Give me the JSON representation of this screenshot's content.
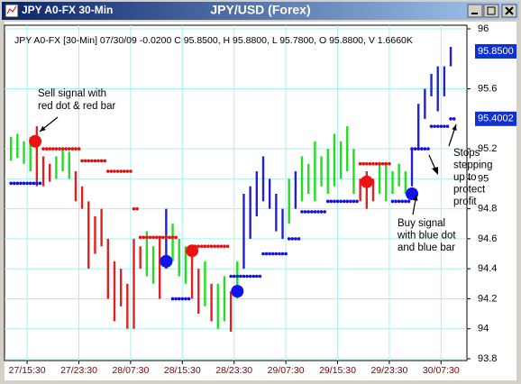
{
  "window": {
    "title": "JPY A0-FX 30-Min"
  },
  "chart_data": {
    "type": "ohlc",
    "title": "JPY/USD (Forex)",
    "info": "JPY A0-FX [30-Min] 07/30/09 -0.0200 C 95.8500, H 95.8800, L 95.7800, O 95.8800, V 1.6660K",
    "xlim": [
      -7,
      136
    ],
    "ylim": [
      93.8,
      96
    ],
    "xticks": [
      {
        "value": 0,
        "label": "27/15:30"
      },
      {
        "value": 16,
        "label": "27/23:30"
      },
      {
        "value": 32,
        "label": "28/07:30"
      },
      {
        "value": 48,
        "label": "28/15:30"
      },
      {
        "value": 64,
        "label": "28/23:30"
      },
      {
        "value": 80,
        "label": "29/07:30"
      },
      {
        "value": 96,
        "label": "29/15:30"
      },
      {
        "value": 112,
        "label": "29/23:30"
      },
      {
        "value": 128,
        "label": "30/07:30"
      }
    ],
    "yticks": [
      93.8,
      94,
      94.2,
      94.4,
      94.6,
      94.8,
      95,
      95.2,
      95.6,
      96
    ],
    "grid": true,
    "price_markers": [
      {
        "value": 95.85,
        "label": "95.8500"
      },
      {
        "value": 95.4002,
        "label": "95.4002"
      }
    ],
    "bars": {
      "x": [
        -5,
        -3,
        -1,
        1,
        3,
        5,
        7,
        9,
        11,
        13,
        15,
        17,
        19,
        21,
        23,
        25,
        27,
        29,
        31,
        33,
        35,
        37,
        39,
        41,
        43,
        45,
        47,
        49,
        51,
        53,
        55,
        57,
        59,
        61,
        63,
        65,
        67,
        69,
        71,
        73,
        75,
        77,
        79,
        81,
        83,
        85,
        87,
        89,
        91,
        93,
        95,
        97,
        99,
        101,
        103,
        105,
        107,
        109,
        111,
        113,
        115,
        117,
        119,
        121,
        123,
        125,
        127,
        129,
        131
      ],
      "high": [
        95.28,
        95.3,
        95.25,
        95.28,
        95.35,
        95.15,
        95.1,
        95.15,
        95.2,
        95.18,
        95.05,
        94.95,
        94.85,
        94.75,
        94.8,
        94.6,
        94.45,
        94.4,
        94.3,
        94.6,
        94.55,
        94.65,
        94.55,
        94.6,
        94.8,
        94.7,
        94.6,
        94.55,
        94.55,
        94.4,
        94.45,
        94.3,
        94.3,
        94.35,
        94.25,
        94.45,
        94.9,
        94.95,
        95.05,
        95.15,
        95,
        94.9,
        94.8,
        95,
        95.05,
        95.15,
        95.1,
        95.25,
        95.15,
        95.2,
        95.3,
        95.25,
        95.35,
        95.2,
        95,
        95.05,
        95,
        95.1,
        95.1,
        95.05,
        95.1,
        95.05,
        95.2,
        95.5,
        95.6,
        95.7,
        95.75,
        95.75,
        95.88
      ],
      "low": [
        95.12,
        95.14,
        95.1,
        95.05,
        94.95,
        94.95,
        94.98,
        95,
        95.05,
        95,
        94.85,
        94.8,
        94.4,
        94.5,
        94.55,
        94.2,
        94.05,
        94.15,
        94,
        94,
        94.4,
        94.35,
        94.3,
        94.2,
        94.4,
        94.45,
        94.35,
        94.3,
        94.2,
        94.1,
        94.15,
        94.05,
        94,
        94.05,
        93.98,
        94.2,
        94.4,
        94.6,
        94.75,
        94.85,
        94.8,
        94.65,
        94.6,
        94.7,
        94.8,
        94.85,
        94.9,
        94.85,
        94.95,
        94.9,
        94.95,
        95,
        95.05,
        94.9,
        94.85,
        94.8,
        94.85,
        94.9,
        94.85,
        94.9,
        94.95,
        94.9,
        94.95,
        95.2,
        95.4,
        95.55,
        95.45,
        95.55,
        95.75
      ],
      "colors": [
        "#22dd22",
        "#22dd22",
        "#22dd22",
        "#22dd22",
        "#dd2222",
        "#dd2222",
        "#dd2222",
        "#22dd22",
        "#22dd22",
        "#22dd22",
        "#dd2222",
        "#dd2222",
        "#dd2222",
        "#dd2222",
        "#dd2222",
        "#dd2222",
        "#dd2222",
        "#dd2222",
        "#dd2222",
        "#dd2222",
        "#dd2222",
        "#22dd22",
        "#22dd22",
        "#dd2222",
        "#2222cc",
        "#22dd22",
        "#22dd22",
        "#22dd22",
        "#dd2222",
        "#dd2222",
        "#22dd22",
        "#dd2222",
        "#22dd22",
        "#22dd22",
        "#dd2222",
        "#22dd22",
        "#2222cc",
        "#2222cc",
        "#2222cc",
        "#2222cc",
        "#2222cc",
        "#2222cc",
        "#2222cc",
        "#22dd22",
        "#2222cc",
        "#22dd22",
        "#22dd22",
        "#22dd22",
        "#22dd22",
        "#22dd22",
        "#22dd22",
        "#22dd22",
        "#22dd22",
        "#22dd22",
        "#dd2222",
        "#dd2222",
        "#dd2222",
        "#22dd22",
        "#22dd22",
        "#22dd22",
        "#22dd22",
        "#22dd22",
        "#2222cc",
        "#2222cc",
        "#2222cc",
        "#2222cc",
        "#2222cc",
        "#2222cc",
        "#2222cc"
      ]
    },
    "stops": [
      {
        "color": "#dd1111",
        "x": [
          5,
          7,
          9,
          11,
          13,
          15,
          17,
          19,
          21,
          23,
          25,
          27,
          29,
          31,
          33,
          35,
          37,
          39,
          41,
          43,
          45,
          51,
          53,
          55,
          57,
          59,
          61,
          103,
          105,
          107,
          109,
          111
        ],
        "values": [
          95.2,
          95.2,
          95.2,
          95.2,
          95.2,
          95.2,
          95.12,
          95.12,
          95.12,
          95.12,
          95.05,
          95.05,
          95.05,
          95.05,
          94.8,
          94.61,
          94.61,
          94.61,
          94.61,
          94.61,
          94.61,
          94.55,
          94.55,
          94.55,
          94.55,
          94.55,
          94.55,
          95.1,
          95.1,
          95.1,
          95.1,
          95.1
        ]
      },
      {
        "color": "#1111dd",
        "x": [
          -5,
          -3,
          -1,
          1,
          3,
          45,
          47,
          49,
          63,
          65,
          67,
          69,
          71,
          73,
          75,
          77,
          79,
          81,
          83,
          85,
          87,
          89,
          91,
          93,
          95,
          97,
          99,
          101,
          113,
          115,
          117,
          119,
          121,
          123,
          125,
          127,
          129,
          131
        ],
        "values": [
          94.97,
          94.97,
          94.97,
          94.97,
          94.97,
          94.2,
          94.2,
          94.2,
          94.35,
          94.35,
          94.35,
          94.35,
          94.35,
          94.5,
          94.5,
          94.5,
          94.5,
          94.6,
          94.6,
          94.78,
          94.78,
          94.78,
          94.78,
          94.85,
          94.85,
          94.85,
          94.85,
          94.85,
          94.85,
          94.85,
          94.85,
          95.2,
          95.2,
          95.2,
          95.35,
          95.35,
          95.35,
          95.4
        ]
      }
    ],
    "signals": {
      "x": [
        2.5,
        43,
        51,
        65,
        105,
        119
      ],
      "values": [
        95.25,
        94.45,
        94.52,
        94.25,
        94.98,
        94.9
      ],
      "colors": [
        "#ee1111",
        "#1111ee",
        "#ee1111",
        "#1111ee",
        "#ee1111",
        "#1111ee"
      ]
    },
    "annotations": [
      {
        "lines": [
          "Sell signal with",
          "red dot & red bar"
        ]
      },
      {
        "lines": [
          "Buy signal",
          "with blue dot",
          "and blue bar"
        ]
      },
      {
        "lines": [
          "Stops",
          "stepping",
          "up to",
          "protect",
          "profit"
        ]
      }
    ]
  }
}
